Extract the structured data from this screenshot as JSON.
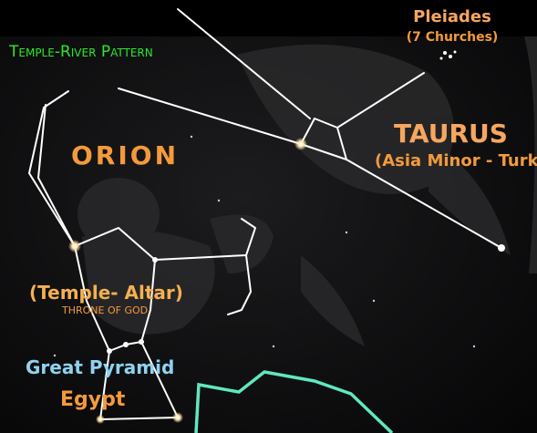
{
  "labels": {
    "pattern": "Temple-River Pattern",
    "orion": "ORION",
    "pleiades": "Pleiades",
    "churches": "(7 Churches)",
    "taurus": "TAURUS",
    "asia": "(Asia Minor - Turke",
    "altar": "(Temple- Altar)",
    "throne": "THRONE OF GOD",
    "pyramid": "Great Pyramid",
    "egypt": "Egypt"
  }
}
